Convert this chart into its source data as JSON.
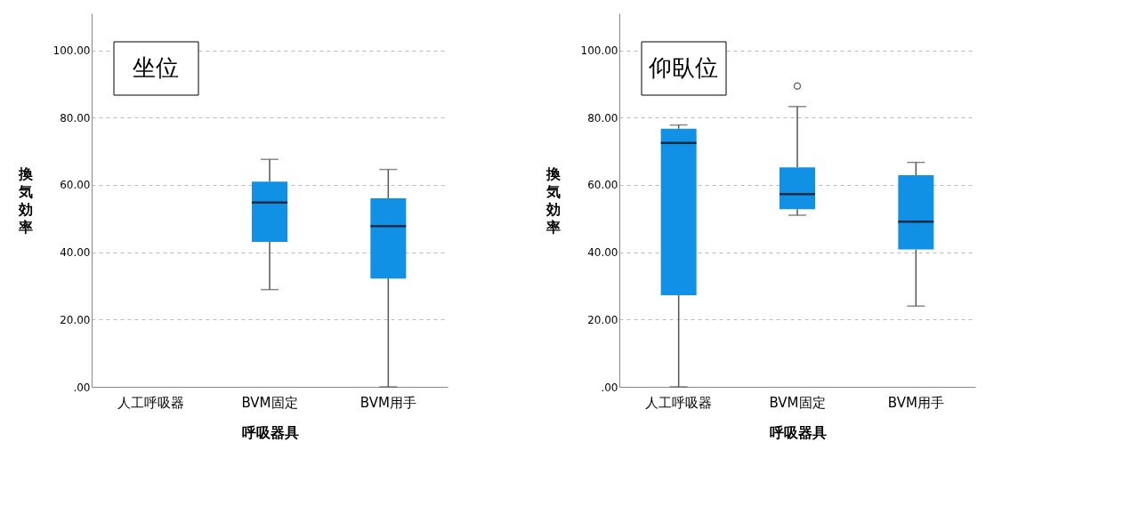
{
  "chart_data": [
    {
      "type": "box",
      "xlabel": "呼吸器具",
      "ylabel": "換気効率",
      "categories": [
        "人工呼吸器",
        "BVM固定",
        "BVM用手"
      ],
      "color": "#1191e6",
      "grid": "y",
      "annotations": [
        "坐位"
      ],
      "ylim": [
        0,
        111
      ],
      "yticks": [
        {
          "value": 0,
          "label": ".00"
        },
        {
          "value": 20,
          "label": "20.00"
        },
        {
          "value": 40,
          "label": "40.00"
        },
        {
          "value": 60,
          "label": "60.00"
        },
        {
          "value": 80,
          "label": "80.00"
        },
        {
          "value": 100,
          "label": "100.00"
        }
      ],
      "boxes": [
        null,
        {
          "low": 28.9,
          "q1": 43.1,
          "median": 54.8,
          "q3": 61.0,
          "high": 67.6
        },
        {
          "low": 0,
          "q1": 32.2,
          "median": 47.8,
          "q3": 56.0,
          "high": 64.6
        }
      ]
    },
    {
      "type": "box",
      "xlabel": "呼吸器具",
      "ylabel": "換気効率",
      "categories": [
        "人工呼吸器",
        "BVM固定",
        "BVM用手"
      ],
      "color": "#1191e6",
      "grid": "y",
      "annotations": [
        "仰臥位"
      ],
      "ylim": [
        0,
        111
      ],
      "yticks": [
        {
          "value": 0,
          "label": ".00"
        },
        {
          "value": 20,
          "label": "20.00"
        },
        {
          "value": 40,
          "label": "40.00"
        },
        {
          "value": 60,
          "label": "60.00"
        },
        {
          "value": 80,
          "label": "80.00"
        },
        {
          "value": 100,
          "label": "100.00"
        }
      ],
      "boxes": [
        {
          "low": 0,
          "q1": 27.2,
          "median": 72.5,
          "q3": 76.7,
          "high": 77.8
        },
        {
          "low": 51.0,
          "q1": 52.8,
          "median": 57.3,
          "q3": 65.2,
          "high": 83.3,
          "outliers": [
            89.4
          ]
        },
        {
          "low": 24.0,
          "q1": 40.8,
          "median": 49.1,
          "q3": 62.9,
          "high": 66.7
        }
      ]
    }
  ]
}
